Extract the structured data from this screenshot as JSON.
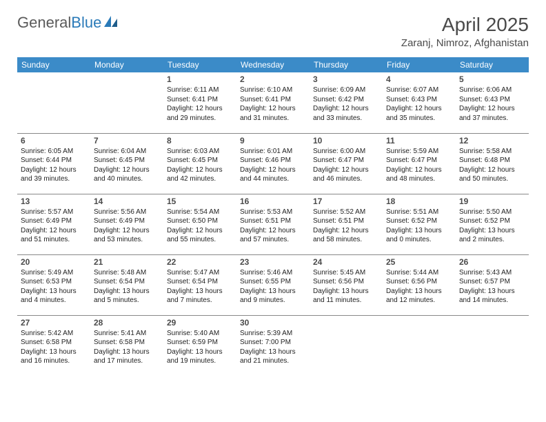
{
  "brand": {
    "part1": "General",
    "part2": "Blue"
  },
  "title": "April 2025",
  "location": "Zaranj, Nimroz, Afghanistan",
  "colors": {
    "header_bg": "#3b8bc8",
    "header_text": "#ffffff",
    "brand_gray": "#5a5a5a",
    "brand_blue": "#2a7ab8",
    "text": "#222222",
    "rule": "#888888"
  },
  "day_labels": [
    "Sunday",
    "Monday",
    "Tuesday",
    "Wednesday",
    "Thursday",
    "Friday",
    "Saturday"
  ],
  "weeks": [
    [
      null,
      null,
      {
        "n": "1",
        "sr": "Sunrise: 6:11 AM",
        "ss": "Sunset: 6:41 PM",
        "d1": "Daylight: 12 hours",
        "d2": "and 29 minutes."
      },
      {
        "n": "2",
        "sr": "Sunrise: 6:10 AM",
        "ss": "Sunset: 6:41 PM",
        "d1": "Daylight: 12 hours",
        "d2": "and 31 minutes."
      },
      {
        "n": "3",
        "sr": "Sunrise: 6:09 AM",
        "ss": "Sunset: 6:42 PM",
        "d1": "Daylight: 12 hours",
        "d2": "and 33 minutes."
      },
      {
        "n": "4",
        "sr": "Sunrise: 6:07 AM",
        "ss": "Sunset: 6:43 PM",
        "d1": "Daylight: 12 hours",
        "d2": "and 35 minutes."
      },
      {
        "n": "5",
        "sr": "Sunrise: 6:06 AM",
        "ss": "Sunset: 6:43 PM",
        "d1": "Daylight: 12 hours",
        "d2": "and 37 minutes."
      }
    ],
    [
      {
        "n": "6",
        "sr": "Sunrise: 6:05 AM",
        "ss": "Sunset: 6:44 PM",
        "d1": "Daylight: 12 hours",
        "d2": "and 39 minutes."
      },
      {
        "n": "7",
        "sr": "Sunrise: 6:04 AM",
        "ss": "Sunset: 6:45 PM",
        "d1": "Daylight: 12 hours",
        "d2": "and 40 minutes."
      },
      {
        "n": "8",
        "sr": "Sunrise: 6:03 AM",
        "ss": "Sunset: 6:45 PM",
        "d1": "Daylight: 12 hours",
        "d2": "and 42 minutes."
      },
      {
        "n": "9",
        "sr": "Sunrise: 6:01 AM",
        "ss": "Sunset: 6:46 PM",
        "d1": "Daylight: 12 hours",
        "d2": "and 44 minutes."
      },
      {
        "n": "10",
        "sr": "Sunrise: 6:00 AM",
        "ss": "Sunset: 6:47 PM",
        "d1": "Daylight: 12 hours",
        "d2": "and 46 minutes."
      },
      {
        "n": "11",
        "sr": "Sunrise: 5:59 AM",
        "ss": "Sunset: 6:47 PM",
        "d1": "Daylight: 12 hours",
        "d2": "and 48 minutes."
      },
      {
        "n": "12",
        "sr": "Sunrise: 5:58 AM",
        "ss": "Sunset: 6:48 PM",
        "d1": "Daylight: 12 hours",
        "d2": "and 50 minutes."
      }
    ],
    [
      {
        "n": "13",
        "sr": "Sunrise: 5:57 AM",
        "ss": "Sunset: 6:49 PM",
        "d1": "Daylight: 12 hours",
        "d2": "and 51 minutes."
      },
      {
        "n": "14",
        "sr": "Sunrise: 5:56 AM",
        "ss": "Sunset: 6:49 PM",
        "d1": "Daylight: 12 hours",
        "d2": "and 53 minutes."
      },
      {
        "n": "15",
        "sr": "Sunrise: 5:54 AM",
        "ss": "Sunset: 6:50 PM",
        "d1": "Daylight: 12 hours",
        "d2": "and 55 minutes."
      },
      {
        "n": "16",
        "sr": "Sunrise: 5:53 AM",
        "ss": "Sunset: 6:51 PM",
        "d1": "Daylight: 12 hours",
        "d2": "and 57 minutes."
      },
      {
        "n": "17",
        "sr": "Sunrise: 5:52 AM",
        "ss": "Sunset: 6:51 PM",
        "d1": "Daylight: 12 hours",
        "d2": "and 58 minutes."
      },
      {
        "n": "18",
        "sr": "Sunrise: 5:51 AM",
        "ss": "Sunset: 6:52 PM",
        "d1": "Daylight: 13 hours",
        "d2": "and 0 minutes."
      },
      {
        "n": "19",
        "sr": "Sunrise: 5:50 AM",
        "ss": "Sunset: 6:52 PM",
        "d1": "Daylight: 13 hours",
        "d2": "and 2 minutes."
      }
    ],
    [
      {
        "n": "20",
        "sr": "Sunrise: 5:49 AM",
        "ss": "Sunset: 6:53 PM",
        "d1": "Daylight: 13 hours",
        "d2": "and 4 minutes."
      },
      {
        "n": "21",
        "sr": "Sunrise: 5:48 AM",
        "ss": "Sunset: 6:54 PM",
        "d1": "Daylight: 13 hours",
        "d2": "and 5 minutes."
      },
      {
        "n": "22",
        "sr": "Sunrise: 5:47 AM",
        "ss": "Sunset: 6:54 PM",
        "d1": "Daylight: 13 hours",
        "d2": "and 7 minutes."
      },
      {
        "n": "23",
        "sr": "Sunrise: 5:46 AM",
        "ss": "Sunset: 6:55 PM",
        "d1": "Daylight: 13 hours",
        "d2": "and 9 minutes."
      },
      {
        "n": "24",
        "sr": "Sunrise: 5:45 AM",
        "ss": "Sunset: 6:56 PM",
        "d1": "Daylight: 13 hours",
        "d2": "and 11 minutes."
      },
      {
        "n": "25",
        "sr": "Sunrise: 5:44 AM",
        "ss": "Sunset: 6:56 PM",
        "d1": "Daylight: 13 hours",
        "d2": "and 12 minutes."
      },
      {
        "n": "26",
        "sr": "Sunrise: 5:43 AM",
        "ss": "Sunset: 6:57 PM",
        "d1": "Daylight: 13 hours",
        "d2": "and 14 minutes."
      }
    ],
    [
      {
        "n": "27",
        "sr": "Sunrise: 5:42 AM",
        "ss": "Sunset: 6:58 PM",
        "d1": "Daylight: 13 hours",
        "d2": "and 16 minutes."
      },
      {
        "n": "28",
        "sr": "Sunrise: 5:41 AM",
        "ss": "Sunset: 6:58 PM",
        "d1": "Daylight: 13 hours",
        "d2": "and 17 minutes."
      },
      {
        "n": "29",
        "sr": "Sunrise: 5:40 AM",
        "ss": "Sunset: 6:59 PM",
        "d1": "Daylight: 13 hours",
        "d2": "and 19 minutes."
      },
      {
        "n": "30",
        "sr": "Sunrise: 5:39 AM",
        "ss": "Sunset: 7:00 PM",
        "d1": "Daylight: 13 hours",
        "d2": "and 21 minutes."
      },
      null,
      null,
      null
    ]
  ]
}
